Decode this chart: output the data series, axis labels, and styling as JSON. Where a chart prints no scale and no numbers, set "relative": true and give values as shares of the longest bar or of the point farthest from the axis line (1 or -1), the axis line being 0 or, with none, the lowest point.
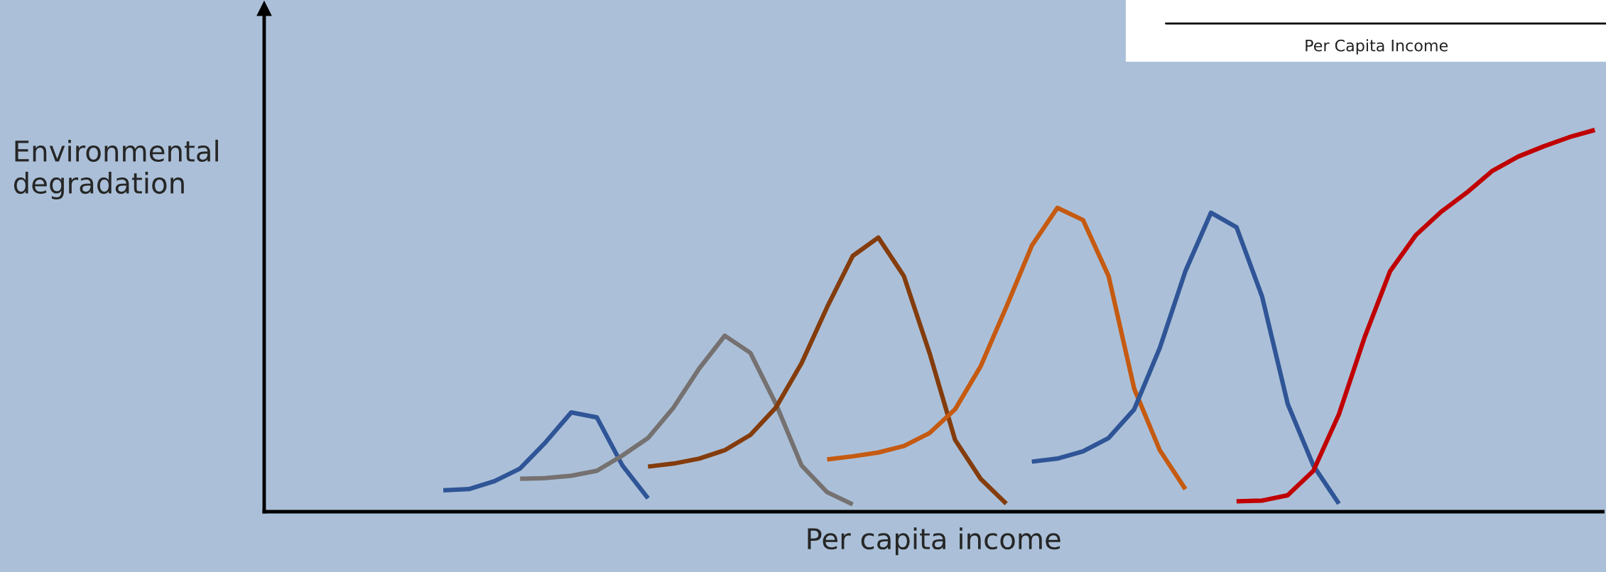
{
  "chart_data": {
    "type": "line",
    "relative": true,
    "xlabel": "Per capita income",
    "ylabel": "Environmental\ndegradation",
    "annotations": [
      "Per Capita Income"
    ],
    "tick_labels": false,
    "categories": [
      null,
      null,
      null,
      null,
      null,
      null,
      null,
      null,
      null,
      null,
      null,
      null,
      null,
      null,
      null,
      null,
      null,
      null,
      null,
      null,
      null,
      null,
      null,
      null,
      null,
      null,
      null,
      null,
      null,
      null,
      null,
      null,
      null,
      null,
      null,
      null,
      null,
      null,
      null,
      null,
      null,
      null,
      null,
      null,
      null,
      null,
      null,
      null,
      null,
      null,
      null,
      null,
      null
    ],
    "series": [
      {
        "color": "#2f5597",
        "values": [
          null,
          null,
          null,
          null,
          null,
          null,
          null,
          0.056,
          0.059,
          0.08,
          0.113,
          0.182,
          0.26,
          0.247,
          0.121,
          0.035,
          null,
          null,
          null,
          null,
          null,
          null,
          null,
          null,
          null,
          null,
          null,
          null,
          null,
          null,
          null,
          null,
          null,
          null,
          null,
          null,
          null,
          null,
          null,
          null,
          null,
          null,
          null,
          null,
          null,
          null,
          null,
          null,
          null,
          null,
          null,
          null,
          null
        ]
      },
      {
        "color": "#767171",
        "values": [
          null,
          null,
          null,
          null,
          null,
          null,
          null,
          null,
          null,
          null,
          0.086,
          0.088,
          0.094,
          0.107,
          0.147,
          0.193,
          0.273,
          0.375,
          0.461,
          0.416,
          0.282,
          0.121,
          0.051,
          0.019,
          null,
          null,
          null,
          null,
          null,
          null,
          null,
          null,
          null,
          null,
          null,
          null,
          null,
          null,
          null,
          null,
          null,
          null,
          null,
          null,
          null,
          null,
          null,
          null,
          null,
          null,
          null,
          null,
          null
        ]
      },
      {
        "color": "#843c0c",
        "values": [
          null,
          null,
          null,
          null,
          null,
          null,
          null,
          null,
          null,
          null,
          null,
          null,
          null,
          null,
          null,
          0.118,
          0.126,
          0.139,
          0.161,
          0.201,
          0.273,
          0.389,
          0.536,
          0.67,
          0.718,
          0.617,
          0.416,
          0.188,
          0.086,
          0.021,
          null,
          null,
          null,
          null,
          null,
          null,
          null,
          null,
          null,
          null,
          null,
          null,
          null,
          null,
          null,
          null,
          null,
          null,
          null,
          null,
          null,
          null,
          null
        ]
      },
      {
        "color": "#c55a11",
        "values": [
          null,
          null,
          null,
          null,
          null,
          null,
          null,
          null,
          null,
          null,
          null,
          null,
          null,
          null,
          null,
          null,
          null,
          null,
          null,
          null,
          null,
          null,
          0.137,
          0.145,
          0.155,
          0.172,
          0.206,
          0.268,
          0.381,
          0.536,
          0.697,
          0.796,
          0.764,
          0.617,
          0.322,
          0.161,
          0.059,
          null,
          null,
          null,
          null,
          null,
          null,
          null,
          null,
          null,
          null,
          null,
          null,
          null,
          null,
          null,
          null
        ]
      },
      {
        "color": "#2f5597",
        "values": [
          null,
          null,
          null,
          null,
          null,
          null,
          null,
          null,
          null,
          null,
          null,
          null,
          null,
          null,
          null,
          null,
          null,
          null,
          null,
          null,
          null,
          null,
          null,
          null,
          null,
          null,
          null,
          null,
          null,
          null,
          0.131,
          0.139,
          0.158,
          0.193,
          0.268,
          0.429,
          0.63,
          0.783,
          0.745,
          0.563,
          0.282,
          0.121,
          0.021,
          null,
          null,
          null,
          null,
          null,
          null,
          null,
          null,
          null,
          null
        ]
      },
      {
        "color": "#c00000",
        "values": [
          null,
          null,
          null,
          null,
          null,
          null,
          null,
          null,
          null,
          null,
          null,
          null,
          null,
          null,
          null,
          null,
          null,
          null,
          null,
          null,
          null,
          null,
          null,
          null,
          null,
          null,
          null,
          null,
          null,
          null,
          null,
          null,
          null,
          null,
          null,
          null,
          null,
          null,
          0.027,
          0.029,
          0.043,
          0.107,
          0.255,
          0.456,
          0.63,
          0.724,
          0.786,
          0.836,
          0.893,
          0.93,
          0.957,
          0.981,
          1.0
        ]
      }
    ]
  }
}
